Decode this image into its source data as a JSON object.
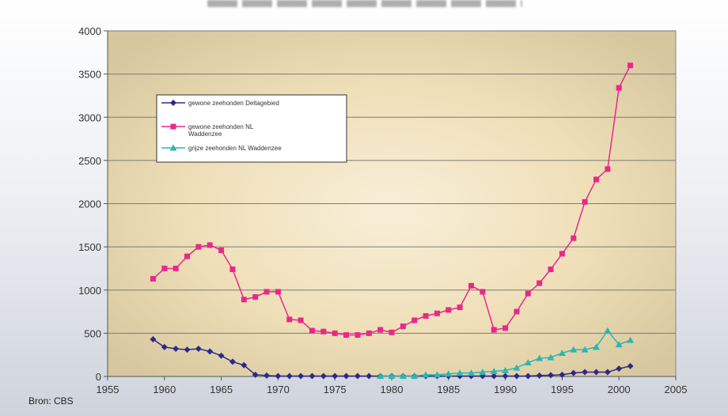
{
  "source": "Bron: CBS",
  "chart_data": {
    "type": "line",
    "xlim": [
      1955,
      2005
    ],
    "ylim": [
      0,
      4000
    ],
    "x_ticks": [
      1955,
      1960,
      1965,
      1970,
      1975,
      1980,
      1985,
      1990,
      1995,
      2000,
      2005
    ],
    "y_ticks": [
      0,
      500,
      1000,
      1500,
      2000,
      2500,
      3000,
      3500,
      4000
    ],
    "grid": "horizontal",
    "legend_position": "top-left",
    "series": [
      {
        "name": "gewone zeehonden Deltagebied",
        "color": "#2b2a8a",
        "marker": "diamond",
        "points": [
          [
            1959,
            430
          ],
          [
            1960,
            340
          ],
          [
            1961,
            320
          ],
          [
            1962,
            310
          ],
          [
            1963,
            320
          ],
          [
            1964,
            290
          ],
          [
            1965,
            240
          ],
          [
            1966,
            170
          ],
          [
            1967,
            130
          ],
          [
            1968,
            20
          ],
          [
            1969,
            10
          ],
          [
            1970,
            5
          ],
          [
            1971,
            5
          ],
          [
            1972,
            5
          ],
          [
            1973,
            5
          ],
          [
            1974,
            5
          ],
          [
            1975,
            5
          ],
          [
            1976,
            5
          ],
          [
            1977,
            5
          ],
          [
            1978,
            5
          ],
          [
            1979,
            5
          ],
          [
            1980,
            5
          ],
          [
            1981,
            5
          ],
          [
            1982,
            5
          ],
          [
            1983,
            5
          ],
          [
            1984,
            5
          ],
          [
            1985,
            5
          ],
          [
            1986,
            5
          ],
          [
            1987,
            5
          ],
          [
            1988,
            5
          ],
          [
            1989,
            5
          ],
          [
            1990,
            5
          ],
          [
            1991,
            5
          ],
          [
            1992,
            5
          ],
          [
            1993,
            10
          ],
          [
            1994,
            15
          ],
          [
            1995,
            20
          ],
          [
            1996,
            40
          ],
          [
            1997,
            50
          ],
          [
            1998,
            50
          ],
          [
            1999,
            50
          ],
          [
            2000,
            90
          ],
          [
            2001,
            120
          ]
        ]
      },
      {
        "name": "gewone zeehonden NL Waddenzee",
        "color": "#e8288a",
        "marker": "square",
        "points": [
          [
            1959,
            1130
          ],
          [
            1960,
            1250
          ],
          [
            1961,
            1250
          ],
          [
            1962,
            1390
          ],
          [
            1963,
            1500
          ],
          [
            1964,
            1520
          ],
          [
            1965,
            1460
          ],
          [
            1966,
            1240
          ],
          [
            1967,
            890
          ],
          [
            1968,
            920
          ],
          [
            1969,
            980
          ],
          [
            1970,
            980
          ],
          [
            1971,
            660
          ],
          [
            1972,
            650
          ],
          [
            1973,
            530
          ],
          [
            1974,
            520
          ],
          [
            1975,
            500
          ],
          [
            1976,
            480
          ],
          [
            1977,
            480
          ],
          [
            1978,
            500
          ],
          [
            1979,
            540
          ],
          [
            1980,
            510
          ],
          [
            1981,
            580
          ],
          [
            1982,
            650
          ],
          [
            1983,
            700
          ],
          [
            1984,
            730
          ],
          [
            1985,
            770
          ],
          [
            1986,
            800
          ],
          [
            1987,
            1050
          ],
          [
            1988,
            980
          ],
          [
            1989,
            540
          ],
          [
            1990,
            560
          ],
          [
            1991,
            750
          ],
          [
            1992,
            960
          ],
          [
            1993,
            1080
          ],
          [
            1994,
            1240
          ],
          [
            1995,
            1420
          ],
          [
            1996,
            1600
          ],
          [
            1997,
            2020
          ],
          [
            1998,
            2280
          ],
          [
            1999,
            2400
          ],
          [
            2000,
            3340
          ],
          [
            2001,
            3600
          ]
        ]
      },
      {
        "name": "grijze zeehonden NL Waddenzee",
        "color": "#2fb5b0",
        "marker": "triangle",
        "points": [
          [
            1979,
            5
          ],
          [
            1980,
            5
          ],
          [
            1981,
            5
          ],
          [
            1982,
            5
          ],
          [
            1983,
            20
          ],
          [
            1984,
            20
          ],
          [
            1985,
            30
          ],
          [
            1986,
            40
          ],
          [
            1987,
            40
          ],
          [
            1988,
            50
          ],
          [
            1989,
            60
          ],
          [
            1990,
            70
          ],
          [
            1991,
            100
          ],
          [
            1992,
            160
          ],
          [
            1993,
            210
          ],
          [
            1994,
            220
          ],
          [
            1995,
            270
          ],
          [
            1996,
            310
          ],
          [
            1997,
            310
          ],
          [
            1998,
            340
          ],
          [
            1999,
            530
          ],
          [
            2000,
            370
          ],
          [
            2001,
            420
          ]
        ]
      }
    ]
  }
}
